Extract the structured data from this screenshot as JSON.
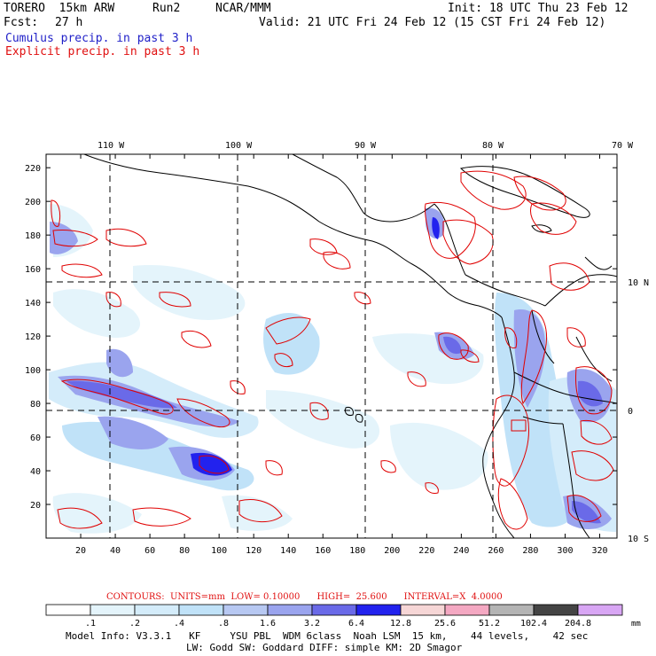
{
  "header": {
    "model": "TORERO  15km ARW",
    "run": "Run2",
    "org": "NCAR/MMM",
    "init": "Init: 18 UTC Thu 23 Feb 12",
    "fcst_label": "Fcst:",
    "fcst_value": "27 h",
    "valid": "Valid: 21 UTC Fri 24 Feb 12 (15 CST Fri 24 Feb 12)",
    "field1": "Cumulus precip. in past 3 h",
    "field2": "Explicit precip. in past 3 h"
  },
  "colors": {
    "field1": "#1f1fc8",
    "field2": "#e01010",
    "grid": "#000000",
    "coast": "#000000",
    "contour": "#e00000"
  },
  "map": {
    "lon_labels": [
      "110 W",
      "100 W",
      "90 W",
      "80 W",
      "70 W"
    ],
    "lat_labels": [
      "10 N",
      "0",
      "10 S"
    ],
    "x_ticks": [
      "20",
      "40",
      "60",
      "80",
      "100",
      "120",
      "140",
      "160",
      "180",
      "200",
      "220",
      "240",
      "260",
      "280",
      "300",
      "320"
    ],
    "y_ticks": [
      "20",
      "40",
      "60",
      "80",
      "100",
      "120",
      "140",
      "160",
      "180",
      "200",
      "220"
    ]
  },
  "contours": {
    "text": "CONTOURS:  UNITS=mm  LOW= 0.10000      HIGH=  25.600      INTERVAL=X  4.0000"
  },
  "colorbar": {
    "levels": [
      ".1",
      ".2",
      ".4",
      ".8",
      "1.6",
      "3.2",
      "6.4",
      "12.8",
      "25.6",
      "51.2",
      "102.4",
      "204.8"
    ],
    "colors": [
      "#ffffff",
      "#e4f4fb",
      "#d4ecfa",
      "#c0e2f8",
      "#b7c8f2",
      "#9aa4ee",
      "#6a6ae8",
      "#2222ee",
      "#f6d6d6",
      "#f4a8c2",
      "#b4b4b4",
      "#444444",
      "#d8a6f4"
    ],
    "units": "mm"
  },
  "footer": {
    "line1": "Model Info: V3.3.1   KF     YSU PBL  WDM 6class  Noah LSM  15 km,    44 levels,    42 sec",
    "line2": "LW: Godd SW: Goddard DIFF: simple KM: 2D Smagor"
  }
}
